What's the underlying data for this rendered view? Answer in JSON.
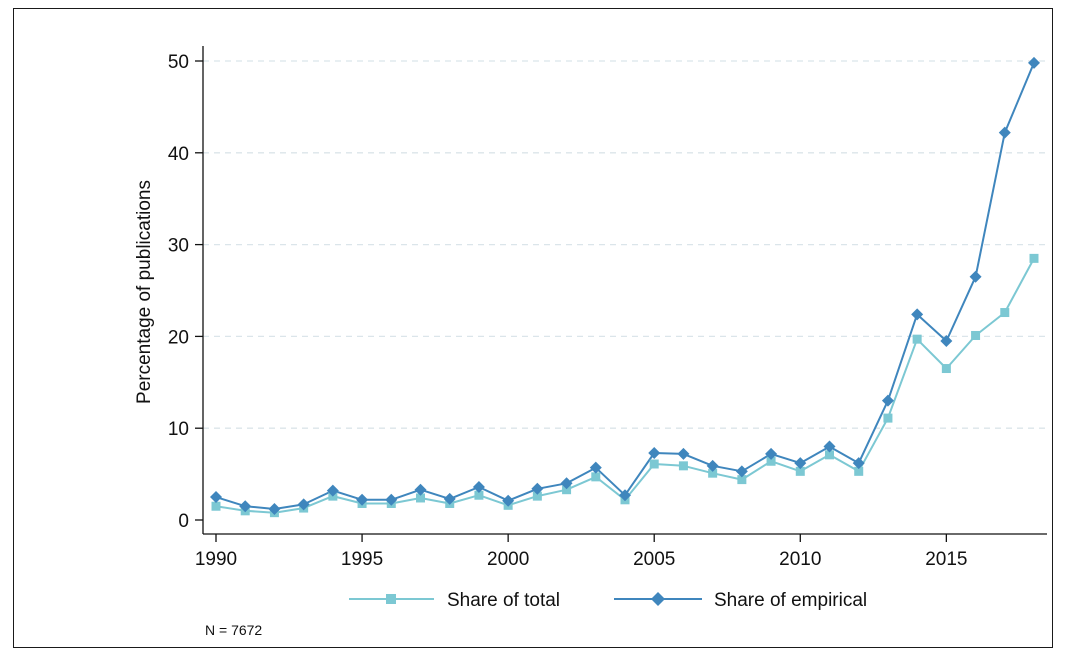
{
  "chart_data": {
    "type": "line",
    "title": "",
    "xlabel": "",
    "ylabel": "Percentage of publications",
    "xlim": [
      1990,
      2018
    ],
    "ylim": [
      0,
      50
    ],
    "x_ticks": [
      "1990",
      "1995",
      "2000",
      "2005",
      "2010",
      "2015"
    ],
    "y_ticks": [
      "0",
      "10",
      "20",
      "30",
      "40",
      "50"
    ],
    "grid": "horizontal dashed",
    "legend_position": "bottom",
    "x": [
      1990,
      1991,
      1992,
      1993,
      1994,
      1995,
      1996,
      1997,
      1998,
      1999,
      2000,
      2001,
      2002,
      2003,
      2004,
      2005,
      2006,
      2007,
      2008,
      2009,
      2010,
      2011,
      2012,
      2013,
      2014,
      2015,
      2016,
      2017,
      2018
    ],
    "series": [
      {
        "name": "Share of total",
        "color": "#7cc8d3",
        "marker": "square",
        "values": [
          1.5,
          1.0,
          0.8,
          1.3,
          2.6,
          1.8,
          1.8,
          2.4,
          1.8,
          2.7,
          1.6,
          2.6,
          3.3,
          4.7,
          2.2,
          6.1,
          5.9,
          5.1,
          4.4,
          6.4,
          5.3,
          7.1,
          5.3,
          11.1,
          19.7,
          16.5,
          20.1,
          22.6,
          28.5
        ]
      },
      {
        "name": "Share of empirical",
        "color": "#3f86bd",
        "marker": "diamond",
        "values": [
          2.5,
          1.5,
          1.2,
          1.7,
          3.2,
          2.2,
          2.2,
          3.3,
          2.3,
          3.6,
          2.1,
          3.4,
          4.0,
          5.7,
          2.7,
          7.3,
          7.2,
          5.9,
          5.3,
          7.2,
          6.2,
          8.0,
          6.2,
          13.0,
          22.4,
          19.5,
          26.5,
          42.2,
          49.8
        ]
      }
    ],
    "note": "N = 7672"
  }
}
